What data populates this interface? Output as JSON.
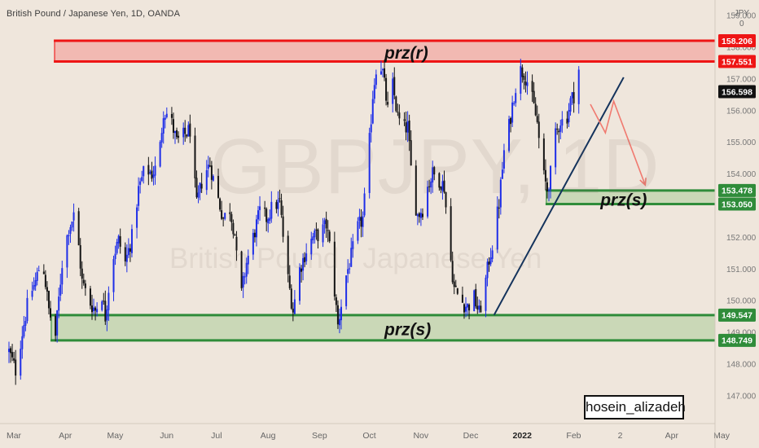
{
  "header": {
    "symbol_title": "British Pound / Japanese Yen, 1D, OANDA",
    "currency_top": "JPY",
    "currency_bottom": "0"
  },
  "watermark": {
    "ticker": "GBPJPY, 1D",
    "name": "British Pound / Japanese Yen"
  },
  "signature": "hosein_alizadeh",
  "colors": {
    "background": "#efe6dc",
    "bull_candle": "#1e2ee8",
    "bear_candle": "#141414",
    "resistance_line": "#ee1515",
    "resistance_fill": "#f2b0aa",
    "support_line": "#2f8c3a",
    "support_fill": "#c5d6b2",
    "trendline": "#14335c",
    "projection": "#f07a70"
  },
  "chart_data": {
    "type": "candlestick",
    "instrument": "GBPJPY",
    "timeframe": "1D",
    "y_ticks": [
      147.0,
      148.0,
      149.0,
      150.0,
      151.0,
      152.0,
      153.0,
      154.0,
      155.0,
      156.0,
      157.0,
      158.0,
      159.0
    ],
    "y_tick_labels": [
      "147.000",
      "148.000",
      "149.000",
      "150.000",
      "151.000",
      "152.000",
      "153.000",
      "154.000",
      "155.000",
      "156.000",
      "157.000",
      "158.000",
      "159.000"
    ],
    "x_tick_labels": [
      {
        "label": "Mar",
        "day": 0,
        "bold": false
      },
      {
        "label": "Apr",
        "day": 31,
        "bold": false
      },
      {
        "label": "May",
        "day": 61,
        "bold": false
      },
      {
        "label": "Jun",
        "day": 92,
        "bold": false
      },
      {
        "label": "Jul",
        "day": 122,
        "bold": false
      },
      {
        "label": "Aug",
        "day": 153,
        "bold": false
      },
      {
        "label": "Sep",
        "day": 184,
        "bold": false
      },
      {
        "label": "Oct",
        "day": 214,
        "bold": false
      },
      {
        "label": "Nov",
        "day": 245,
        "bold": false
      },
      {
        "label": "Dec",
        "day": 275,
        "bold": false
      },
      {
        "label": "2022",
        "day": 306,
        "bold": true
      },
      {
        "label": "Feb",
        "day": 337,
        "bold": false
      },
      {
        "label": "2",
        "day": 365,
        "bold": false
      },
      {
        "label": "Apr",
        "day": 396,
        "bold": false
      },
      {
        "label": "May",
        "day": 426,
        "bold": false
      }
    ],
    "price_markers": [
      {
        "value": "158.206",
        "bg": "#ee1515",
        "fg": "#ffffff"
      },
      {
        "value": "157.551",
        "bg": "#ee1515",
        "fg": "#ffffff"
      },
      {
        "value": "156.598",
        "bg": "#111111",
        "fg": "#ffffff"
      },
      {
        "value": "153.478",
        "bg": "#2f8c3a",
        "fg": "#ffffff"
      },
      {
        "value": "153.050",
        "bg": "#2f8c3a",
        "fg": "#ffffff"
      },
      {
        "value": "149.547",
        "bg": "#2f8c3a",
        "fg": "#ffffff"
      },
      {
        "value": "148.749",
        "bg": "#2f8c3a",
        "fg": "#ffffff"
      }
    ],
    "zones": [
      {
        "label": "prz(r)",
        "kind": "resistance",
        "top": 158.206,
        "bottom": 157.551,
        "day_start": 27,
        "day_end": 432,
        "label_day": 226,
        "label_price": 157.84
      },
      {
        "label": "prz(s)",
        "kind": "support",
        "top": 153.478,
        "bottom": 153.05,
        "day_start": 323,
        "day_end": 432,
        "label_day": 356,
        "label_price": 153.2
      },
      {
        "label": "prz(s)",
        "kind": "support",
        "top": 149.547,
        "bottom": 148.749,
        "day_start": 25,
        "day_end": 432,
        "label_day": 226,
        "label_price": 149.12
      }
    ],
    "trendline": {
      "from": {
        "day": 292,
        "price": 149.55
      },
      "to": {
        "day": 370,
        "price": 157.05
      }
    },
    "projection_path": [
      {
        "day": 350,
        "price": 156.2
      },
      {
        "day": 359,
        "price": 155.3
      },
      {
        "day": 364,
        "price": 156.3
      },
      {
        "day": 383,
        "price": 153.65
      }
    ],
    "price_path": [
      {
        "day": 0,
        "price": 148.4
      },
      {
        "day": 4,
        "price": 147.8
      },
      {
        "day": 8,
        "price": 149.0
      },
      {
        "day": 12,
        "price": 150.1
      },
      {
        "day": 16,
        "price": 150.6
      },
      {
        "day": 20,
        "price": 151.4
      },
      {
        "day": 24,
        "price": 149.7
      },
      {
        "day": 28,
        "price": 148.9
      },
      {
        "day": 32,
        "price": 151.2
      },
      {
        "day": 36,
        "price": 152.3
      },
      {
        "day": 40,
        "price": 152.8
      },
      {
        "day": 44,
        "price": 150.6
      },
      {
        "day": 48,
        "price": 150.0
      },
      {
        "day": 52,
        "price": 149.7
      },
      {
        "day": 56,
        "price": 150.2
      },
      {
        "day": 58,
        "price": 149.5
      },
      {
        "day": 62,
        "price": 151.3
      },
      {
        "day": 66,
        "price": 151.9
      },
      {
        "day": 70,
        "price": 151.2
      },
      {
        "day": 74,
        "price": 152.0
      },
      {
        "day": 78,
        "price": 153.5
      },
      {
        "day": 82,
        "price": 154.2
      },
      {
        "day": 86,
        "price": 154.0
      },
      {
        "day": 90,
        "price": 154.3
      },
      {
        "day": 93,
        "price": 156.0
      },
      {
        "day": 97,
        "price": 155.8
      },
      {
        "day": 101,
        "price": 155.0
      },
      {
        "day": 105,
        "price": 155.2
      },
      {
        "day": 109,
        "price": 155.4
      },
      {
        "day": 113,
        "price": 153.0
      },
      {
        "day": 117,
        "price": 154.0
      },
      {
        "day": 121,
        "price": 154.3
      },
      {
        "day": 125,
        "price": 153.4
      },
      {
        "day": 129,
        "price": 152.6
      },
      {
        "day": 133,
        "price": 152.9
      },
      {
        "day": 136,
        "price": 152.1
      },
      {
        "day": 139,
        "price": 149.9
      },
      {
        "day": 143,
        "price": 151.2
      },
      {
        "day": 147,
        "price": 152.0
      },
      {
        "day": 151,
        "price": 152.8
      },
      {
        "day": 155,
        "price": 152.6
      },
      {
        "day": 159,
        "price": 153.0
      },
      {
        "day": 163,
        "price": 153.1
      },
      {
        "day": 167,
        "price": 151.0
      },
      {
        "day": 171,
        "price": 149.7
      },
      {
        "day": 175,
        "price": 151.0
      },
      {
        "day": 179,
        "price": 151.6
      },
      {
        "day": 183,
        "price": 152.0
      },
      {
        "day": 187,
        "price": 152.1
      },
      {
        "day": 191,
        "price": 152.4
      },
      {
        "day": 194,
        "price": 151.4
      },
      {
        "day": 198,
        "price": 149.2
      },
      {
        "day": 202,
        "price": 150.6
      },
      {
        "day": 206,
        "price": 151.4
      },
      {
        "day": 210,
        "price": 152.3
      },
      {
        "day": 213,
        "price": 152.6
      },
      {
        "day": 216,
        "price": 154.3
      },
      {
        "day": 219,
        "price": 156.5
      },
      {
        "day": 222,
        "price": 157.8
      },
      {
        "day": 225,
        "price": 157.2
      },
      {
        "day": 228,
        "price": 156.0
      },
      {
        "day": 231,
        "price": 156.8
      },
      {
        "day": 234,
        "price": 155.8
      },
      {
        "day": 237,
        "price": 155.4
      },
      {
        "day": 240,
        "price": 155.5
      },
      {
        "day": 243,
        "price": 153.5
      },
      {
        "day": 246,
        "price": 152.7
      },
      {
        "day": 249,
        "price": 152.9
      },
      {
        "day": 252,
        "price": 153.6
      },
      {
        "day": 255,
        "price": 154.0
      },
      {
        "day": 258,
        "price": 153.9
      },
      {
        "day": 262,
        "price": 153.6
      },
      {
        "day": 265,
        "price": 151.7
      },
      {
        "day": 268,
        "price": 150.4
      },
      {
        "day": 272,
        "price": 150.0
      },
      {
        "day": 276,
        "price": 149.8
      },
      {
        "day": 280,
        "price": 150.1
      },
      {
        "day": 283,
        "price": 149.6
      },
      {
        "day": 286,
        "price": 150.3
      },
      {
        "day": 289,
        "price": 151.3
      },
      {
        "day": 292,
        "price": 152.0
      },
      {
        "day": 295,
        "price": 153.1
      },
      {
        "day": 298,
        "price": 154.7
      },
      {
        "day": 301,
        "price": 155.5
      },
      {
        "day": 304,
        "price": 156.5
      },
      {
        "day": 307,
        "price": 157.3
      },
      {
        "day": 310,
        "price": 157.2
      },
      {
        "day": 313,
        "price": 156.8
      },
      {
        "day": 316,
        "price": 156.1
      },
      {
        "day": 318,
        "price": 155.6
      },
      {
        "day": 320,
        "price": 154.6
      },
      {
        "day": 322,
        "price": 153.9
      },
      {
        "day": 324,
        "price": 153.5
      },
      {
        "day": 326,
        "price": 154.0
      },
      {
        "day": 329,
        "price": 155.2
      },
      {
        "day": 332,
        "price": 155.7
      },
      {
        "day": 335,
        "price": 155.6
      },
      {
        "day": 338,
        "price": 156.3
      },
      {
        "day": 341,
        "price": 156.6
      },
      {
        "day": 343,
        "price": 157.3
      }
    ]
  }
}
